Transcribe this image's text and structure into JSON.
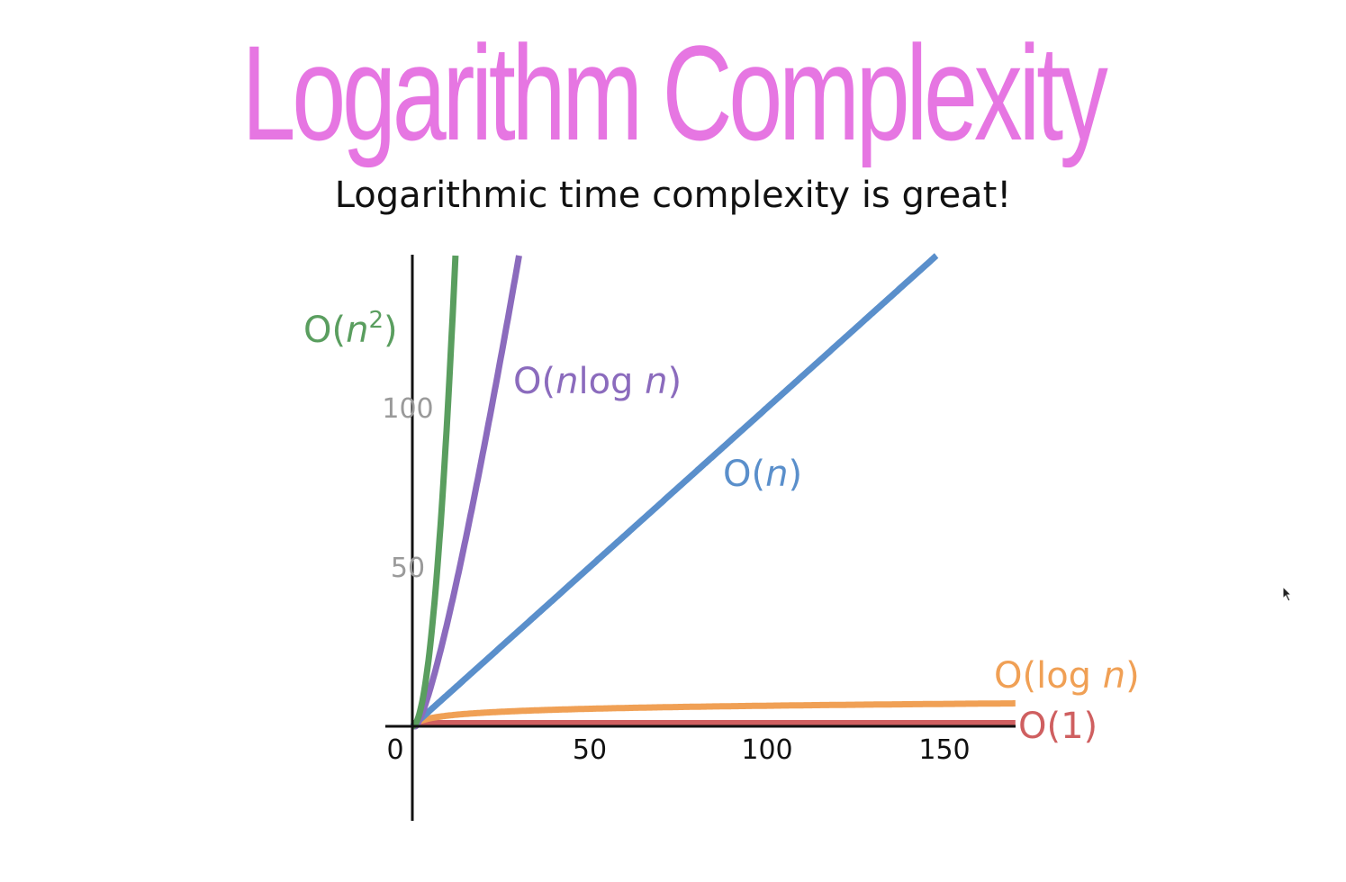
{
  "title": "Logarithm Complexity",
  "subtitle": "Logarithmic time complexity is great!",
  "colors": {
    "title": "#e676e2",
    "axis": "#111111",
    "y_tick_labels": "#9a9a9a"
  },
  "chart_data": {
    "type": "line",
    "title": "Logarithm Complexity",
    "subtitle": "Logarithmic time complexity is great!",
    "xlabel": "",
    "ylabel": "",
    "xlim": [
      0,
      170
    ],
    "ylim": [
      0,
      148
    ],
    "x_ticks": [
      0,
      50,
      100,
      150
    ],
    "y_ticks": [
      50,
      100
    ],
    "x_tick_labels": [
      "0",
      "50",
      "100",
      "150"
    ],
    "y_tick_labels": [
      "50",
      "100"
    ],
    "grid": false,
    "legend": "inline labels next to curves",
    "series": [
      {
        "name": "O(n²)",
        "label_prefix": "O(",
        "label_var": "n",
        "label_sup": "2",
        "label_suffix": ")",
        "color": "#5a9e5f",
        "function": "n^2",
        "x": [
          0,
          2,
          4,
          6,
          8,
          10,
          12.2
        ],
        "y": [
          0,
          4,
          16,
          36,
          64,
          100,
          148
        ]
      },
      {
        "name": "O(nlog n)",
        "label_prefix": "O(",
        "label_var": "n",
        "label_mid": "log ",
        "label_var2": "n",
        "label_suffix": ")",
        "color": "#8b6bbd",
        "function": "n log2 n",
        "x": [
          0,
          4,
          8,
          12,
          16,
          20,
          24,
          28,
          30.5
        ],
        "y": [
          0,
          8,
          24,
          43,
          64,
          86,
          110,
          135,
          148
        ]
      },
      {
        "name": "O(n)",
        "label_prefix": "O(",
        "label_var": "n",
        "label_suffix": ")",
        "color": "#5a8fcb",
        "function": "n",
        "x": [
          0,
          50,
          100,
          148
        ],
        "y": [
          0,
          50,
          100,
          148
        ]
      },
      {
        "name": "O(log n)",
        "label_prefix": "O(log ",
        "label_var": "n",
        "label_suffix": ")",
        "color": "#f0a055",
        "function": "log2 n",
        "x": [
          1,
          10,
          20,
          50,
          100,
          150,
          170
        ],
        "y": [
          0,
          3.3,
          4.3,
          5.6,
          6.6,
          7.2,
          7.4
        ]
      },
      {
        "name": "O(1)",
        "label_prefix": "O(1)",
        "label_suffix": "",
        "color": "#cf5f60",
        "function": "1",
        "x": [
          0,
          170
        ],
        "y": [
          1,
          1
        ]
      }
    ]
  }
}
